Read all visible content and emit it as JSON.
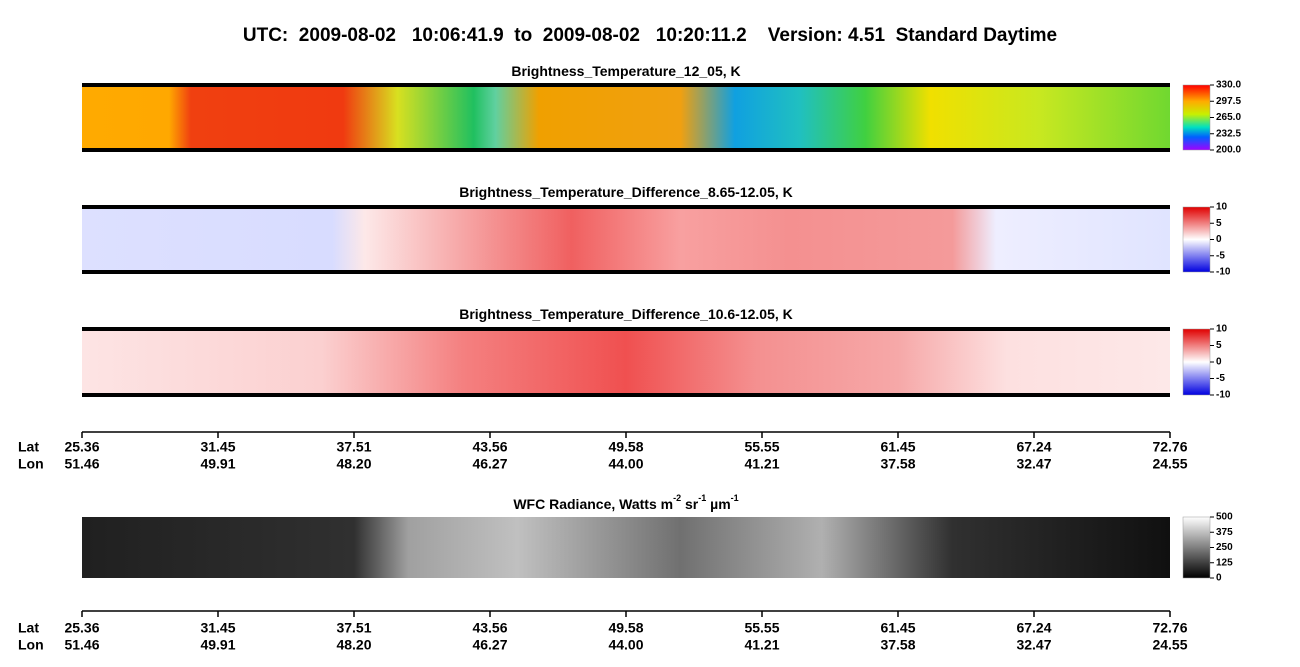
{
  "title": "UTC:  2009-08-02   10:06:41.9  to  2009-08-02   10:20:11.2    Version: 4.51  Standard Daytime",
  "panels": [
    {
      "title": [
        "Brightness_Temperature_12_05, K"
      ],
      "colorbar_labels": [
        "330.0",
        "297.5",
        "265.0",
        "232.5",
        "200.0"
      ]
    },
    {
      "title": [
        "Brightness_Temperature_Difference_8.65-12.05, K"
      ],
      "colorbar_labels": [
        "10",
        "5",
        "0",
        "-5",
        "-10"
      ]
    },
    {
      "title": [
        "Brightness_Temperature_Difference_10.6-12.05, K"
      ],
      "colorbar_labels": [
        "10",
        "5",
        "0",
        "-5",
        "-10"
      ]
    },
    {
      "title": [
        "WFC Radiance, Watts m",
        "-2",
        " sr",
        "-1",
        " µm",
        "-1"
      ],
      "colorbar_labels": [
        "500",
        "375",
        "250",
        "125",
        "0"
      ]
    }
  ],
  "axis_rows": [
    {
      "row_labels": [
        "Lat",
        "Lon"
      ],
      "lat": [
        "25.36",
        "31.45",
        "37.51",
        "43.56",
        "49.58",
        "55.55",
        "61.45",
        "67.24",
        "72.76"
      ],
      "lon": [
        "51.46",
        "49.91",
        "48.20",
        "46.27",
        "44.00",
        "41.21",
        "37.58",
        "32.47",
        "24.55"
      ]
    },
    {
      "row_labels": [
        "Lat",
        "Lon"
      ],
      "lat": [
        "25.36",
        "31.45",
        "37.51",
        "43.56",
        "49.58",
        "55.55",
        "61.45",
        "67.24",
        "72.76"
      ],
      "lon": [
        "51.46",
        "49.91",
        "48.20",
        "46.27",
        "44.00",
        "41.21",
        "37.58",
        "32.47",
        "24.55"
      ]
    }
  ]
}
